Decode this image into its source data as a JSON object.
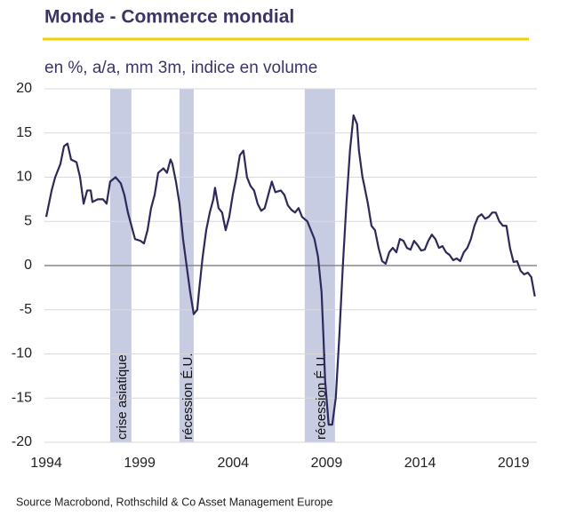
{
  "chart_data": {
    "type": "line",
    "title": "Monde - Commerce mondial",
    "subtitle": "en %, a/a, mm 3m, indice en volume",
    "source": "Source Macrobond, Rothschild & Co Asset Management Europe",
    "xlim": [
      1994,
      2020.25
    ],
    "xticks": [
      1994,
      1999,
      2004,
      2009,
      2014,
      2019
    ],
    "ylim": [
      -20,
      20
    ],
    "yticks": [
      -20,
      -15,
      -10,
      -5,
      0,
      5,
      10,
      15,
      20
    ],
    "grid": true,
    "shaded_periods": [
      {
        "start": 1997.42,
        "end": 1998.56,
        "label": "crise asiatique",
        "color": "#c8cce3"
      },
      {
        "start": 2001.13,
        "end": 2001.89,
        "label": "récession É.U.",
        "color": "#c8cce3"
      },
      {
        "start": 2007.83,
        "end": 2009.45,
        "label": "récession É.U.",
        "color": "#c8cce3"
      }
    ],
    "series": [
      {
        "color": "#2d2a5a",
        "x": [
          1994.0,
          1994.29,
          1994.48,
          1994.76,
          1994.95,
          1995.14,
          1995.33,
          1995.62,
          1995.81,
          1996.0,
          1996.19,
          1996.38,
          1996.47,
          1996.76,
          1997.04,
          1997.23,
          1997.42,
          1997.71,
          1997.99,
          1998.18,
          1998.37,
          1998.56,
          1998.75,
          1999.04,
          1999.23,
          1999.42,
          1999.61,
          1999.8,
          1999.99,
          2000.27,
          2000.46,
          2000.65,
          2000.75,
          2000.94,
          2001.13,
          2001.32,
          2001.51,
          2001.7,
          2001.89,
          2002.08,
          2002.17,
          2002.37,
          2002.56,
          2002.75,
          2002.94,
          2003.03,
          2003.22,
          2003.41,
          2003.6,
          2003.79,
          2003.98,
          2004.17,
          2004.36,
          2004.55,
          2004.74,
          2004.93,
          2005.12,
          2005.31,
          2005.5,
          2005.69,
          2005.88,
          2006.07,
          2006.26,
          2006.55,
          2006.74,
          2006.93,
          2007.12,
          2007.31,
          2007.5,
          2007.69,
          2007.97,
          2008.16,
          2008.35,
          2008.54,
          2008.73,
          2008.83,
          2008.92,
          2009.11,
          2009.3,
          2009.49,
          2009.68,
          2009.87,
          2010.06,
          2010.25,
          2010.44,
          2010.63,
          2010.73,
          2010.92,
          2011.02,
          2011.21,
          2011.4,
          2011.59,
          2011.78,
          2011.97,
          2012.16,
          2012.35,
          2012.54,
          2012.73,
          2012.92,
          2013.11,
          2013.3,
          2013.49,
          2013.68,
          2013.87,
          2014.06,
          2014.25,
          2014.44,
          2014.63,
          2014.82,
          2015.01,
          2015.2,
          2015.39,
          2015.58,
          2015.77,
          2015.96,
          2016.15,
          2016.34,
          2016.53,
          2016.72,
          2016.91,
          2017.1,
          2017.29,
          2017.48,
          2017.67,
          2017.86,
          2018.05,
          2018.24,
          2018.43,
          2018.62,
          2018.81,
          2019.0,
          2019.19,
          2019.38,
          2019.57,
          2019.76,
          2019.95,
          2020.14
        ],
        "values": [
          5.5,
          8.5,
          10,
          11.5,
          13.5,
          13.8,
          12,
          11.7,
          10,
          7,
          8.5,
          8.5,
          7.2,
          7.5,
          7.5,
          7,
          9.5,
          10,
          9.3,
          8,
          6,
          4.5,
          3,
          2.8,
          2.5,
          4,
          6.5,
          8,
          10.5,
          11,
          10.5,
          12,
          11.5,
          9.5,
          7,
          3,
          0,
          -3,
          -5.5,
          -5,
          -3,
          1,
          4,
          6,
          7.5,
          8.8,
          6.5,
          6,
          4,
          5.5,
          8,
          10,
          12.5,
          13,
          10,
          9,
          8.5,
          7,
          6.2,
          6.5,
          8,
          9.5,
          8.3,
          8.5,
          8,
          6.8,
          6.3,
          6,
          6.5,
          5.5,
          5,
          4,
          3,
          1,
          -3,
          -8,
          -13,
          -18,
          -18,
          -15,
          -8,
          0,
          7,
          13,
          17,
          16,
          13,
          10,
          9,
          7,
          4.5,
          4,
          2,
          0.5,
          0.2,
          1.5,
          2,
          1.5,
          3,
          2.8,
          2,
          1.8,
          2.8,
          2.3,
          1.7,
          1.8,
          2.8,
          3.5,
          3,
          2,
          2.2,
          1.5,
          1.2,
          0.6,
          0.8,
          0.5,
          1.5,
          2,
          3,
          4.5,
          5.5,
          5.8,
          5.3,
          5.5,
          6,
          6,
          5,
          4.5,
          4.5,
          2,
          0.4,
          0.5,
          -0.6,
          -1,
          -0.8,
          -1.3,
          -3.5
        ]
      }
    ]
  }
}
